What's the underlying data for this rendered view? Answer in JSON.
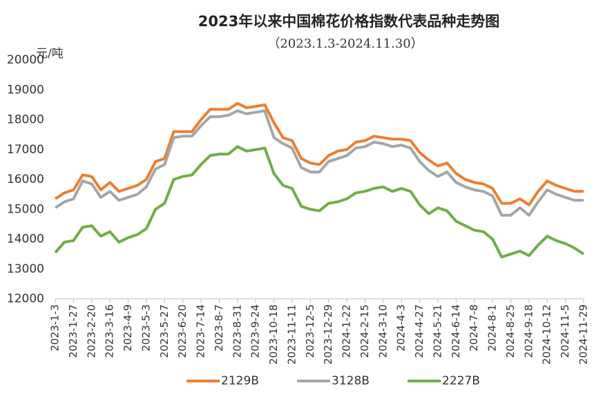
{
  "chart_data": {
    "type": "line",
    "title": "2023年以来中国棉花价格指数代表品种走势图",
    "subtitle": "（2023.1.3-2024.11.30）",
    "y_label": "元/吨",
    "categories": [
      "2023-1-3",
      null,
      "2023-1-27",
      null,
      "2023-2-20",
      null,
      "2023-3-16",
      null,
      "2023-4-9",
      null,
      "2023-5-3",
      null,
      "2023-5-27",
      null,
      "2023-6-20",
      null,
      "2023-7-14",
      null,
      "2023-8-7",
      null,
      "2023-8-31",
      null,
      "2023-9-24",
      null,
      "2023-10-18",
      null,
      "2023-11-11",
      null,
      "2023-12-5",
      null,
      "2023-12-29",
      null,
      "2024-1-22",
      null,
      "2024-2-15",
      null,
      "2024-3-10",
      null,
      "2024-4-3",
      null,
      "2024-4-27",
      null,
      "2024-5-21",
      null,
      "2024-6-14",
      null,
      "2024-7-8",
      null,
      "2024-8-1",
      null,
      "2024-8-25",
      null,
      "2024-9-18",
      null,
      "2024-10-12",
      null,
      "2024-11-5",
      null,
      "2024-11-29"
    ],
    "series": [
      {
        "name": "2129B",
        "color": "#ed7d31",
        "values": [
          15350,
          15550,
          15650,
          16150,
          16100,
          15650,
          15900,
          15600,
          15700,
          15800,
          16000,
          16600,
          16700,
          17600,
          17600,
          17600,
          18000,
          18350,
          18350,
          18350,
          18550,
          18400,
          18450,
          18500,
          17900,
          17400,
          17300,
          16700,
          16550,
          16500,
          16800,
          16950,
          17000,
          17250,
          17300,
          17450,
          17400,
          17350,
          17350,
          17300,
          16900,
          16650,
          16450,
          16550,
          16200,
          16000,
          15900,
          15850,
          15700,
          15200,
          15200,
          15350,
          15150,
          15600,
          15950,
          15800,
          15700,
          15600,
          15600
        ]
      },
      {
        "name": "3128B",
        "color": "#a5a5a5",
        "values": [
          15050,
          15250,
          15350,
          15950,
          15850,
          15400,
          15600,
          15300,
          15400,
          15500,
          15750,
          16350,
          16500,
          17400,
          17450,
          17450,
          17800,
          18100,
          18100,
          18150,
          18300,
          18200,
          18250,
          18300,
          17400,
          17200,
          17050,
          16400,
          16250,
          16250,
          16600,
          16700,
          16800,
          17050,
          17100,
          17250,
          17200,
          17100,
          17150,
          17050,
          16600,
          16300,
          16100,
          16250,
          15900,
          15750,
          15650,
          15600,
          15450,
          14800,
          14800,
          15050,
          14800,
          15250,
          15650,
          15500,
          15400,
          15300,
          15300
        ]
      },
      {
        "name": "2227B",
        "color": "#70ad47",
        "values": [
          13550,
          13900,
          13950,
          14400,
          14450,
          14100,
          14250,
          13900,
          14050,
          14150,
          14350,
          15000,
          15200,
          16000,
          16100,
          16150,
          16500,
          16800,
          16850,
          16850,
          17100,
          16950,
          17000,
          17050,
          16200,
          15800,
          15700,
          15100,
          15000,
          14950,
          15200,
          15250,
          15350,
          15550,
          15600,
          15700,
          15750,
          15600,
          15700,
          15600,
          15150,
          14850,
          15050,
          14950,
          14600,
          14450,
          14300,
          14250,
          14000,
          13400,
          13500,
          13600,
          13450,
          13800,
          14100,
          13950,
          13850,
          13700,
          13500
        ]
      }
    ],
    "ylim": [
      12000,
      20000
    ],
    "yticks": [
      12000,
      13000,
      14000,
      15000,
      16000,
      17000,
      18000,
      19000,
      20000
    ],
    "grid": false,
    "legend": "bottom"
  }
}
